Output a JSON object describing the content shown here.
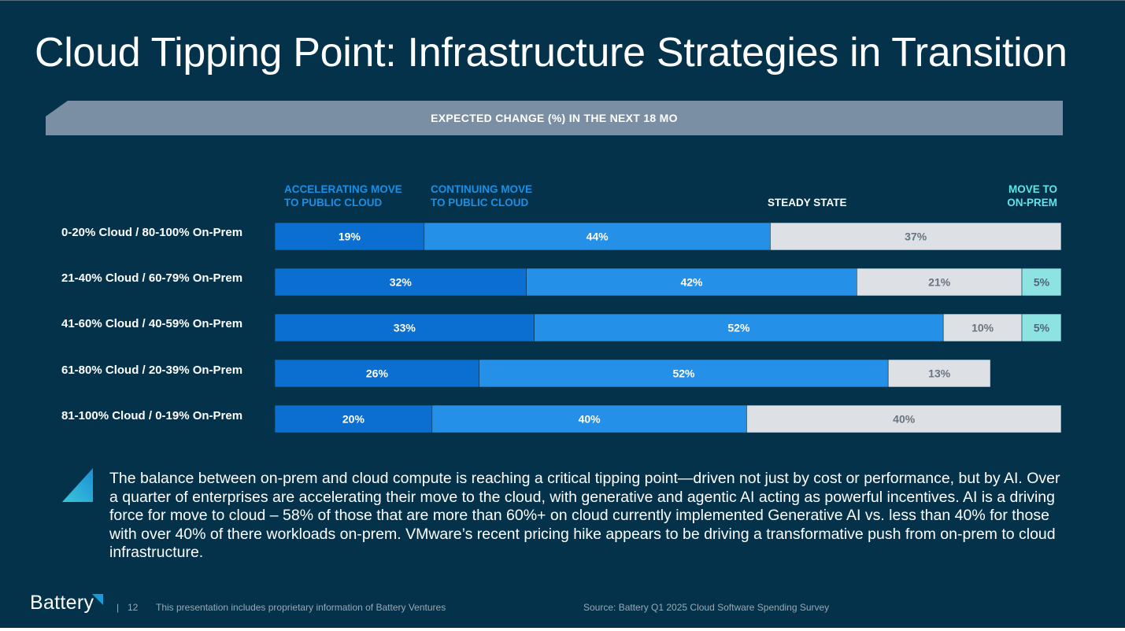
{
  "slide": {
    "title": "Cloud Tipping Point: Infrastructure Strategies in Transition",
    "banner": "EXPECTED CHANGE (%) IN THE NEXT 18 MO",
    "body": "The balance between on-prem and cloud compute is reaching a critical tipping point—driven not just by cost or performance, but by AI. Over a quarter of enterprises are accelerating their move to the cloud, with generative and agentic AI acting as powerful incentives. AI is a driving force for move to cloud – 58% of those that are more than 60%+ on cloud currently implemented Generative AI vs. less than 40% for those with over 40% of there workloads on-prem. VMware’s recent pricing hike appears to be driving a transformative push from on-prem to cloud infrastructure.",
    "logo": "Battery",
    "footer_separator": "|",
    "page_number": "12",
    "footer_note": "This presentation includes proprietary information of Battery Ventures",
    "source": "Source: Battery Q1 2025 Cloud Software Spending Survey"
  },
  "colors": {
    "background": "#03324a",
    "banner": "#7a8fa3",
    "accelerating": "#0a6fd0",
    "continuing": "#2590e8",
    "steady": "#dde1e6",
    "on_prem": "#8ce3e2"
  },
  "chart_data": {
    "type": "bar",
    "orientation": "horizontal",
    "stacked": true,
    "title": "EXPECTED CHANGE (%) IN THE NEXT 18 MO",
    "categories": [
      "0-20% Cloud / 80-100% On-Prem",
      "21-40% Cloud / 60-79% On-Prem",
      "41-60% Cloud / 40-59% On-Prem",
      "61-80% Cloud / 20-39% On-Prem",
      "81-100% Cloud / 0-19% On-Prem"
    ],
    "series": [
      {
        "key": "accelerating",
        "name": "ACCELERATING MOVE\nTO PUBLIC CLOUD",
        "values": [
          19,
          32,
          33,
          26,
          20
        ],
        "labels": [
          "19%",
          "32%",
          "33%",
          "26%",
          "20%"
        ]
      },
      {
        "key": "continuing",
        "name": "CONTINUING MOVE\nTO PUBLIC CLOUD",
        "values": [
          44,
          42,
          52,
          52,
          40
        ],
        "labels": [
          "44%",
          "42%",
          "52%",
          "52%",
          "40%"
        ]
      },
      {
        "key": "steady",
        "name": "STEADY STATE",
        "values": [
          37,
          21,
          10,
          13,
          40
        ],
        "labels": [
          "37%",
          "21%",
          "10%",
          "13%",
          "40%"
        ]
      },
      {
        "key": "on_prem",
        "name": "MOVE TO\nON-PREM",
        "values": [
          0,
          5,
          5,
          0,
          0
        ],
        "labels": [
          "",
          "5%",
          "5%",
          "",
          ""
        ]
      }
    ],
    "xlim": [
      0,
      100
    ],
    "legend": "top"
  }
}
